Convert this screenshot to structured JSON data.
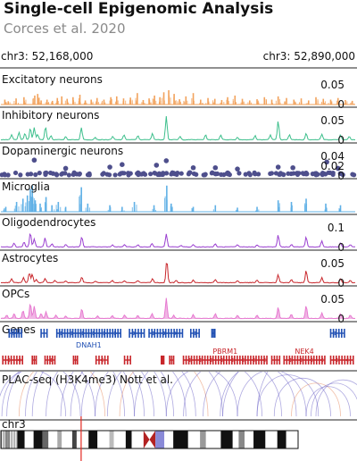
{
  "header": {
    "title": "Single-cell Epigenomic Analysis",
    "subtitle": "Corces et al. 2020"
  },
  "region": {
    "start_label": "chr3: 52,168,000",
    "end_label": "chr3: 52,890,000"
  },
  "colors": {
    "excitatory": "#f2a25c",
    "inhibitory": "#3dbf8c",
    "dopaminergic": "#4e4f8c",
    "microglia": "#5fb0e6",
    "oligodendrocytes": "#9a3fd0",
    "astrocytes": "#c8262b",
    "opcs": "#e67ad0",
    "gene_plus": "#1f4fb3",
    "gene_minus": "#c8262b",
    "plac_arcs": "#6b63c7",
    "highlight": "#e3261f"
  },
  "chart_data": {
    "type": "area",
    "x_range": [
      52168000,
      52890000
    ],
    "tracks": [
      {
        "id": "excitatory",
        "name": "Excitatory neurons",
        "style": "bar",
        "ylim": [
          0,
          0.07
        ],
        "ticks": [
          "0.05",
          "0"
        ],
        "peaks": [
          [
            52176000,
            0.012
          ],
          [
            52183000,
            0.008
          ],
          [
            52199000,
            0.015
          ],
          [
            52215000,
            0.018
          ],
          [
            52237000,
            0.022
          ],
          [
            52243000,
            0.026
          ],
          [
            52250000,
            0.01
          ],
          [
            52262000,
            0.012
          ],
          [
            52273000,
            0.009
          ],
          [
            52283000,
            0.016
          ],
          [
            52292000,
            0.02
          ],
          [
            52303000,
            0.014
          ],
          [
            52315000,
            0.018
          ],
          [
            52329000,
            0.024
          ],
          [
            52340000,
            0.01
          ],
          [
            52352000,
            0.012
          ],
          [
            52364000,
            0.016
          ],
          [
            52378000,
            0.012
          ],
          [
            52392000,
            0.018
          ],
          [
            52404000,
            0.02
          ],
          [
            52418000,
            0.015
          ],
          [
            52432000,
            0.017
          ],
          [
            52446000,
            0.028
          ],
          [
            52458000,
            0.011
          ],
          [
            52470000,
            0.015
          ],
          [
            52481000,
            0.022
          ],
          [
            52492000,
            0.018
          ],
          [
            52500000,
            0.03
          ],
          [
            52510000,
            0.035
          ],
          [
            52521000,
            0.026
          ],
          [
            52532000,
            0.013
          ],
          [
            52545000,
            0.02
          ],
          [
            52560000,
            0.028
          ],
          [
            52575000,
            0.012
          ],
          [
            52590000,
            0.016
          ],
          [
            52604000,
            0.014
          ],
          [
            52618000,
            0.011
          ],
          [
            52630000,
            0.018
          ],
          [
            52645000,
            0.022
          ],
          [
            52660000,
            0.014
          ],
          [
            52675000,
            0.01
          ],
          [
            52690000,
            0.013
          ],
          [
            52705000,
            0.018
          ],
          [
            52720000,
            0.012
          ],
          [
            52733000,
            0.02
          ],
          [
            52750000,
            0.016
          ],
          [
            52765000,
            0.012
          ],
          [
            52780000,
            0.015
          ],
          [
            52795000,
            0.01
          ],
          [
            52810000,
            0.018
          ],
          [
            52825000,
            0.014
          ],
          [
            52840000,
            0.012
          ],
          [
            52855000,
            0.016
          ],
          [
            52870000,
            0.011
          ],
          [
            52884000,
            0.009
          ]
        ]
      },
      {
        "id": "inhibitory",
        "name": "Inhibitory neurons",
        "style": "line",
        "ylim": [
          0,
          0.07
        ],
        "ticks": [
          "0.05",
          "0"
        ],
        "peaks": [
          [
            52190000,
            0.012
          ],
          [
            52205000,
            0.018
          ],
          [
            52217000,
            0.015
          ],
          [
            52228000,
            0.028
          ],
          [
            52236000,
            0.03
          ],
          [
            52243000,
            0.014
          ],
          [
            52259000,
            0.032
          ],
          [
            52270000,
            0.01
          ],
          [
            52300000,
            0.008
          ],
          [
            52332000,
            0.03
          ],
          [
            52360000,
            0.006
          ],
          [
            52396000,
            0.008
          ],
          [
            52419000,
            0.012
          ],
          [
            52447000,
            0.01
          ],
          [
            52477000,
            0.016
          ],
          [
            52505000,
            0.058
          ],
          [
            52533000,
            0.008
          ],
          [
            52585000,
            0.012
          ],
          [
            52616000,
            0.012
          ],
          [
            52650000,
            0.006
          ],
          [
            52686000,
            0.01
          ],
          [
            52717000,
            0.012
          ],
          [
            52733000,
            0.046
          ],
          [
            52756000,
            0.012
          ],
          [
            52790000,
            0.016
          ],
          [
            52822000,
            0.014
          ],
          [
            52860000,
            0.012
          ],
          [
            52878000,
            0.008
          ]
        ]
      },
      {
        "id": "dopaminergic",
        "name": "Dopaminergic neurons",
        "style": "point",
        "ylim": [
          0,
          0.045
        ],
        "ticks": [
          "0.04",
          "0.02",
          "0"
        ],
        "peaks": [
          [
            52236000,
            0.025
          ],
          [
            52300000,
            0.012
          ],
          [
            52390000,
            0.014
          ],
          [
            52415000,
            0.018
          ],
          [
            52485000,
            0.017
          ],
          [
            52505000,
            0.024
          ],
          [
            52560000,
            0.013
          ],
          [
            52605000,
            0.013
          ],
          [
            52650000,
            0.011
          ],
          [
            52733000,
            0.014
          ],
          [
            52763000,
            0.013
          ],
          [
            52832000,
            0.022
          ],
          [
            52855000,
            0.012
          ]
        ]
      },
      {
        "id": "microglia",
        "name": "Microglia",
        "style": "bar",
        "ylim": [
          0,
          0.035
        ],
        "ticks": [],
        "peaks": [
          [
            52178000,
            0.006
          ],
          [
            52200000,
            0.012
          ],
          [
            52213000,
            0.016
          ],
          [
            52222000,
            0.02
          ],
          [
            52228000,
            0.028
          ],
          [
            52232000,
            0.032
          ],
          [
            52238000,
            0.014
          ],
          [
            52248000,
            0.01
          ],
          [
            52260000,
            0.018
          ],
          [
            52272000,
            0.008
          ],
          [
            52285000,
            0.012
          ],
          [
            52300000,
            0.006
          ],
          [
            52332000,
            0.03
          ],
          [
            52345000,
            0.01
          ],
          [
            52390000,
            0.008
          ],
          [
            52415000,
            0.006
          ],
          [
            52440000,
            0.012
          ],
          [
            52480000,
            0.008
          ],
          [
            52506000,
            0.032
          ],
          [
            52515000,
            0.01
          ],
          [
            52560000,
            0.006
          ],
          [
            52605000,
            0.008
          ],
          [
            52650000,
            0.005
          ],
          [
            52690000,
            0.006
          ],
          [
            52733000,
            0.014
          ],
          [
            52760000,
            0.012
          ],
          [
            52790000,
            0.016
          ],
          [
            52830000,
            0.01
          ],
          [
            52860000,
            0.008
          ]
        ]
      },
      {
        "id": "oligodendrocytes",
        "name": "Oligodendrocytes",
        "style": "line",
        "ylim": [
          0,
          0.14
        ],
        "ticks": [
          "0.1",
          "0"
        ],
        "peaks": [
          [
            52195000,
            0.02
          ],
          [
            52215000,
            0.025
          ],
          [
            52228000,
            0.07
          ],
          [
            52236000,
            0.04
          ],
          [
            52258000,
            0.045
          ],
          [
            52272000,
            0.015
          ],
          [
            52300000,
            0.012
          ],
          [
            52333000,
            0.05
          ],
          [
            52395000,
            0.01
          ],
          [
            52420000,
            0.012
          ],
          [
            52447000,
            0.01
          ],
          [
            52476000,
            0.018
          ],
          [
            52505000,
            0.065
          ],
          [
            52535000,
            0.008
          ],
          [
            52560000,
            0.012
          ],
          [
            52605000,
            0.015
          ],
          [
            52650000,
            0.01
          ],
          [
            52690000,
            0.01
          ],
          [
            52733000,
            0.06
          ],
          [
            52760000,
            0.012
          ],
          [
            52790000,
            0.05
          ],
          [
            52822000,
            0.03
          ],
          [
            52860000,
            0.02
          ],
          [
            52880000,
            0.012
          ]
        ]
      },
      {
        "id": "astrocytes",
        "name": "Astrocytes",
        "style": "line",
        "ylim": [
          0,
          0.07
        ],
        "ticks": [
          "0.05",
          "0"
        ],
        "peaks": [
          [
            52190000,
            0.01
          ],
          [
            52214000,
            0.012
          ],
          [
            52226000,
            0.025
          ],
          [
            52232000,
            0.02
          ],
          [
            52240000,
            0.008
          ],
          [
            52258000,
            0.01
          ],
          [
            52278000,
            0.006
          ],
          [
            52300000,
            0.005
          ],
          [
            52333000,
            0.014
          ],
          [
            52360000,
            0.004
          ],
          [
            52395000,
            0.005
          ],
          [
            52420000,
            0.005
          ],
          [
            52447000,
            0.006
          ],
          [
            52477000,
            0.01
          ],
          [
            52506000,
            0.055
          ],
          [
            52525000,
            0.006
          ],
          [
            52560000,
            0.007
          ],
          [
            52605000,
            0.008
          ],
          [
            52650000,
            0.005
          ],
          [
            52690000,
            0.006
          ],
          [
            52733000,
            0.02
          ],
          [
            52760000,
            0.008
          ],
          [
            52790000,
            0.03
          ],
          [
            52822000,
            0.012
          ],
          [
            52860000,
            0.01
          ],
          [
            52880000,
            0.006
          ]
        ]
      },
      {
        "id": "opcs",
        "name": "OPCs",
        "style": "area",
        "ylim": [
          0,
          0.07
        ],
        "ticks": [
          "0.05",
          "0"
        ],
        "peaks": [
          [
            52180000,
            0.008
          ],
          [
            52195000,
            0.012
          ],
          [
            52213000,
            0.02
          ],
          [
            52228000,
            0.038
          ],
          [
            52236000,
            0.03
          ],
          [
            52250000,
            0.012
          ],
          [
            52260000,
            0.016
          ],
          [
            52280000,
            0.008
          ],
          [
            52300000,
            0.006
          ],
          [
            52333000,
            0.024
          ],
          [
            52365000,
            0.006
          ],
          [
            52395000,
            0.007
          ],
          [
            52420000,
            0.008
          ],
          [
            52447000,
            0.008
          ],
          [
            52476000,
            0.012
          ],
          [
            52505000,
            0.05
          ],
          [
            52520000,
            0.008
          ],
          [
            52560000,
            0.01
          ],
          [
            52605000,
            0.012
          ],
          [
            52650000,
            0.008
          ],
          [
            52690000,
            0.008
          ],
          [
            52733000,
            0.028
          ],
          [
            52760000,
            0.01
          ],
          [
            52790000,
            0.032
          ],
          [
            52822000,
            0.014
          ],
          [
            52860000,
            0.012
          ],
          [
            52880000,
            0.008
          ]
        ]
      }
    ],
    "genes": {
      "label": "Genes",
      "plus_strand": [
        {
          "name": "",
          "start": 52185000,
          "end": 52210000
        },
        {
          "name": "",
          "start": 52250000,
          "end": 52262000
        },
        {
          "name": "DNAH1",
          "start": 52282000,
          "end": 52412000
        },
        {
          "name": "",
          "start": 52430000,
          "end": 52460000
        },
        {
          "name": "",
          "start": 52470000,
          "end": 52538000
        },
        {
          "name": "",
          "start": 52555000,
          "end": 52572000
        },
        {
          "name": "",
          "start": 52598000,
          "end": 52604000
        },
        {
          "name": "",
          "start": 52840000,
          "end": 52868000
        }
      ],
      "minus_strand": [
        {
          "name": "",
          "start": 52172000,
          "end": 52212000
        },
        {
          "name": "",
          "start": 52232000,
          "end": 52240000
        },
        {
          "name": "",
          "start": 52258000,
          "end": 52278000
        },
        {
          "name": "",
          "start": 52316000,
          "end": 52324000
        },
        {
          "name": "",
          "start": 52362000,
          "end": 52386000
        },
        {
          "name": "",
          "start": 52420000,
          "end": 52432000
        },
        {
          "name": "",
          "start": 52495000,
          "end": 52500000
        },
        {
          "name": "",
          "start": 52512000,
          "end": 52520000
        },
        {
          "name": "PBRM1",
          "start": 52540000,
          "end": 52710000
        },
        {
          "name": "",
          "start": 52720000,
          "end": 52736000
        },
        {
          "name": "NEK4",
          "start": 52745000,
          "end": 52828000
        },
        {
          "name": "",
          "start": 52840000,
          "end": 52886000
        }
      ]
    },
    "plac_seq": {
      "label": "PLAC-seq (H3K4me3) Nott et al.",
      "arcs": [
        [
          52160000,
          52300000
        ],
        [
          52170000,
          52330000
        ],
        [
          52180000,
          52360000
        ],
        [
          52205000,
          52380000
        ],
        [
          52218000,
          52420000
        ],
        [
          52232000,
          52440000
        ],
        [
          52260000,
          52460000
        ],
        [
          52290000,
          52480000
        ],
        [
          52310000,
          52505000
        ],
        [
          52332000,
          52520000
        ],
        [
          52360000,
          52545000
        ],
        [
          52385000,
          52565000
        ],
        [
          52410000,
          52590000
        ],
        [
          52440000,
          52620000
        ],
        [
          52505000,
          52650000
        ],
        [
          52540000,
          52700000
        ],
        [
          52580000,
          52740000
        ],
        [
          52615000,
          52770000
        ],
        [
          52650000,
          52790000
        ],
        [
          52690000,
          52815000
        ],
        [
          52725000,
          52840000
        ],
        [
          52760000,
          52860000
        ],
        [
          52790000,
          52880000
        ],
        [
          52800000,
          52900000
        ],
        [
          52810000,
          52920000
        ],
        [
          52690000,
          52980000
        ],
        [
          52620000,
          53050000
        ]
      ]
    },
    "ideogram": {
      "label": "chr3",
      "highlight_fraction": 0.27
    }
  }
}
